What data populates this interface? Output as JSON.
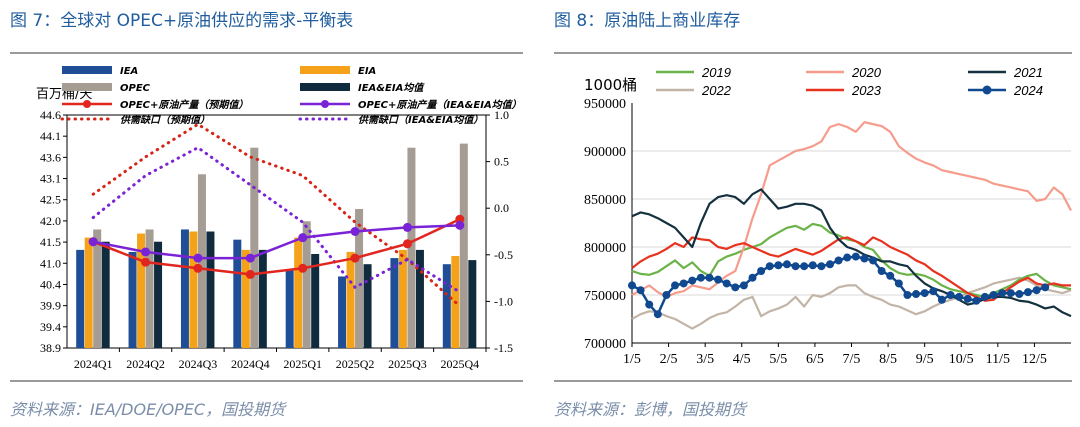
{
  "left": {
    "title": "图 7：全球对 OPEC+原油供应的需求-平衡表",
    "source": "资料来源：IEA/DOE/OPEC，国投期货",
    "colors": {
      "iea": "#1f4e96",
      "eia": "#f5a21b",
      "opec": "#a59c94",
      "ieaeia": "#0f2b3d",
      "prod": "#e0261f",
      "avg": "#7a22d6",
      "gap": "#d62416",
      "gap_avg": "#7a22d6"
    },
    "chart_data": {
      "type": "bar",
      "categories": [
        "2024Q1",
        "2024Q2",
        "2024Q3",
        "2024Q4",
        "2025Q1",
        "2025Q2",
        "2025Q3",
        "2025Q4"
      ],
      "ylabel": "百万桶/天",
      "ylim": [
        38.9,
        44.6
      ],
      "yticks": [
        "44.6",
        "44.1",
        "43.6",
        "43.1",
        "42.5",
        "42.0",
        "41.5",
        "41.0",
        "40.4",
        "39.9",
        "39.4",
        "38.9"
      ],
      "y2lim": [
        -1.5,
        1.0
      ],
      "y2ticks": [
        "1.0",
        "0.5",
        "0.0",
        "-0.5",
        "-1.0",
        "-1.5"
      ],
      "legend": [
        "IEA",
        "EIA",
        "OPEC",
        "IEA&EIA均值",
        "OPEC+原油产量（预期值）",
        "OPEC+原油产量（IEA&EIA均值）",
        "供需缺口（预期值）",
        "供需缺口（IEA&EIA均值）"
      ],
      "series": [
        {
          "name": "IEA",
          "values": [
            41.3,
            41.25,
            41.8,
            41.55,
            40.8,
            40.65,
            41.1,
            40.95
          ]
        },
        {
          "name": "EIA",
          "values": [
            41.6,
            41.7,
            41.75,
            41.3,
            41.6,
            41.25,
            41.3,
            41.15
          ]
        },
        {
          "name": "OPEC",
          "values": [
            41.8,
            41.8,
            43.15,
            43.8,
            42.0,
            42.3,
            43.8,
            43.9
          ]
        },
        {
          "name": "IEA&EIA均值",
          "values": [
            41.5,
            41.5,
            41.75,
            41.3,
            41.2,
            40.95,
            41.3,
            41.05
          ]
        },
        {
          "name": "OPEC+原油产量（预期值）",
          "values": [
            41.5,
            41.0,
            40.85,
            40.7,
            40.85,
            41.1,
            41.45,
            42.05
          ]
        },
        {
          "name": "OPEC+原油产量（IEA&EIA均值）",
          "values": [
            41.5,
            41.25,
            41.1,
            41.1,
            41.6,
            41.75,
            41.85,
            41.9
          ]
        },
        {
          "name": "供需缺口（预期值）",
          "axis": "right",
          "values": [
            0.15,
            0.55,
            0.9,
            0.55,
            0.35,
            -0.15,
            -0.55,
            -1.05
          ]
        },
        {
          "name": "供需缺口（IEA&EIA均值）",
          "axis": "right",
          "values": [
            -0.1,
            0.35,
            0.65,
            0.25,
            -0.15,
            -0.85,
            -0.55,
            -0.9
          ]
        }
      ]
    }
  },
  "right": {
    "title": "图 8：原油陆上商业库存",
    "source": "资料来源：彭博，国投期货",
    "colors": {
      "2019": "#6bb348",
      "2020": "#f59c8c",
      "2021": "#14313f",
      "2022": "#c2b4a6",
      "2023": "#e8321e",
      "2024": "#10498f"
    },
    "chart_data": {
      "type": "line",
      "ylabel": "1000桶",
      "ylim": [
        700000,
        950000
      ],
      "yticks": [
        "950000",
        "900000",
        "850000",
        "800000",
        "750000",
        "700000"
      ],
      "xticks": [
        "1/5",
        "2/5",
        "3/5",
        "4/5",
        "5/5",
        "6/5",
        "7/5",
        "8/5",
        "9/5",
        "10/5",
        "11/5",
        "12/5"
      ],
      "x_points_per_series": 52,
      "series": [
        {
          "name": "2019",
          "values": [
            775000,
            772000,
            771000,
            774000,
            780000,
            786000,
            778000,
            784000,
            775000,
            770000,
            785000,
            790000,
            793000,
            797000,
            800000,
            803000,
            810000,
            815000,
            820000,
            822000,
            818000,
            824000,
            822000,
            815000,
            812000,
            808000,
            806000,
            800000,
            797000,
            786000,
            778000,
            773000,
            771000,
            772000,
            770000,
            766000,
            760000,
            756000,
            754000,
            752000,
            750000,
            748000,
            752000,
            756000,
            760000,
            766000,
            770000,
            772000,
            765000,
            760000,
            758000,
            756000
          ]
        },
        {
          "name": "2020",
          "values": [
            750000,
            755000,
            760000,
            753000,
            748000,
            752000,
            754000,
            760000,
            758000,
            756000,
            763000,
            770000,
            775000,
            800000,
            830000,
            855000,
            885000,
            890000,
            895000,
            900000,
            902000,
            905000,
            910000,
            925000,
            928000,
            925000,
            920000,
            930000,
            928000,
            926000,
            920000,
            905000,
            898000,
            892000,
            888000,
            885000,
            880000,
            878000,
            876000,
            874000,
            872000,
            870000,
            866000,
            864000,
            862000,
            860000,
            858000,
            848000,
            850000,
            862000,
            855000,
            838000
          ]
        },
        {
          "name": "2021",
          "values": [
            832000,
            836000,
            834000,
            830000,
            825000,
            820000,
            810000,
            800000,
            825000,
            845000,
            852000,
            854000,
            852000,
            845000,
            855000,
            860000,
            850000,
            840000,
            842000,
            845000,
            845000,
            843000,
            838000,
            820000,
            808000,
            800000,
            797000,
            792000,
            789000,
            785000,
            785000,
            782000,
            780000,
            770000,
            762000,
            757000,
            754000,
            750000,
            745000,
            740000,
            742000,
            746000,
            748000,
            748000,
            747000,
            744000,
            743000,
            740000,
            736000,
            738000,
            732000,
            728000
          ]
        },
        {
          "name": "2022",
          "values": [
            725000,
            730000,
            733000,
            732000,
            728000,
            725000,
            720000,
            715000,
            720000,
            726000,
            730000,
            732000,
            738000,
            745000,
            748000,
            728000,
            733000,
            736000,
            740000,
            748000,
            738000,
            750000,
            748000,
            752000,
            758000,
            760000,
            760000,
            752000,
            748000,
            745000,
            740000,
            738000,
            734000,
            730000,
            733000,
            738000,
            742000,
            745000,
            748000,
            752000,
            755000,
            758000,
            762000,
            764000,
            766000,
            768000,
            765000,
            760000,
            756000,
            754000,
            752000,
            755000
          ]
        },
        {
          "name": "2023",
          "values": [
            778000,
            785000,
            790000,
            793000,
            798000,
            804000,
            800000,
            810000,
            808000,
            807000,
            800000,
            798000,
            802000,
            804000,
            800000,
            796000,
            792000,
            790000,
            794000,
            798000,
            795000,
            792000,
            796000,
            802000,
            808000,
            810000,
            806000,
            802000,
            810000,
            806000,
            800000,
            796000,
            792000,
            786000,
            782000,
            775000,
            770000,
            764000,
            758000,
            752000,
            748000,
            744000,
            745000,
            752000,
            758000,
            764000,
            768000,
            762000,
            760000,
            762000,
            760000,
            760000
          ]
        },
        {
          "name": "2024",
          "values": [
            760000,
            755000,
            740000,
            730000,
            750000,
            760000,
            762000,
            765000,
            768000,
            768000,
            766000,
            762000,
            758000,
            760000,
            768000,
            775000,
            780000,
            781000,
            782000,
            780000,
            780000,
            781000,
            780000,
            782000,
            786000,
            789000,
            790000,
            788000,
            786000,
            775000,
            770000,
            762000,
            750000,
            751000,
            752000,
            754000,
            745000,
            750000,
            748000,
            746000,
            744000,
            748000,
            750000,
            752000,
            752000,
            751000,
            753000,
            755000,
            758000
          ]
        }
      ]
    }
  }
}
